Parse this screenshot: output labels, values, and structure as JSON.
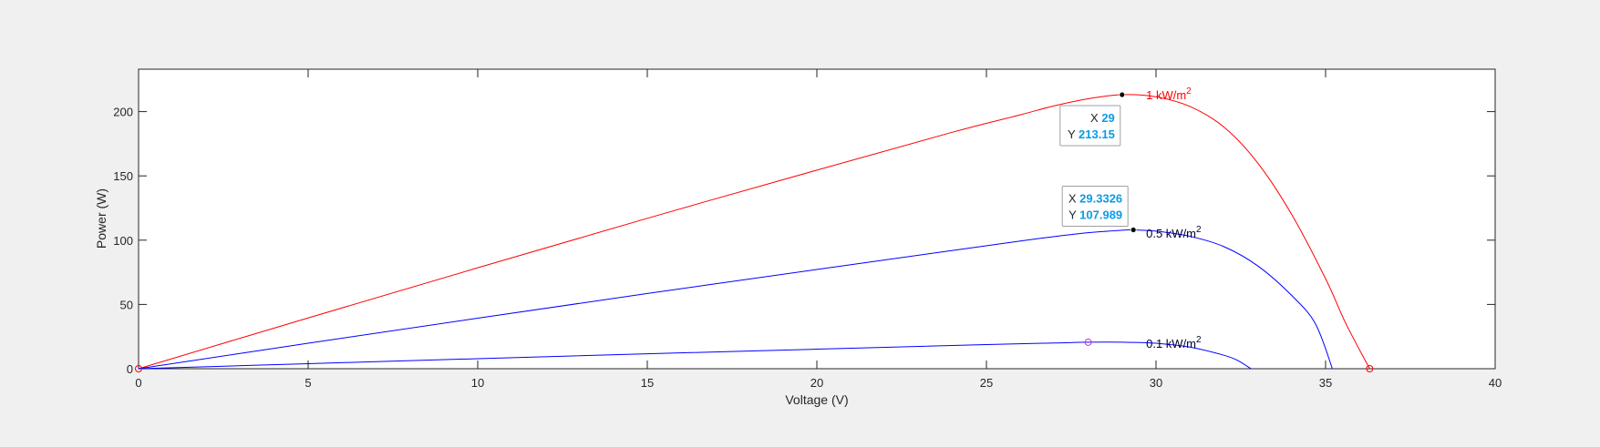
{
  "chart_data": {
    "type": "line",
    "title": "",
    "xlabel": "Voltage (V)",
    "ylabel": "Power (W)",
    "xlim": [
      0,
      40
    ],
    "ylim": [
      0,
      233
    ],
    "xticks": [
      0,
      5,
      10,
      15,
      20,
      25,
      30,
      35,
      40
    ],
    "yticks": [
      0,
      50,
      100,
      150,
      200
    ],
    "grid": false,
    "series": [
      {
        "label_prefix": "1 kW/m",
        "label_superscript": "2",
        "color": "#ff0000",
        "label_at": [
          29.6,
          213.15
        ],
        "points": [
          [
            0,
            0
          ],
          [
            5,
            39.5
          ],
          [
            10,
            78.5
          ],
          [
            15,
            117
          ],
          [
            20,
            154.5
          ],
          [
            24,
            184
          ],
          [
            26,
            197.5
          ],
          [
            27,
            204.5
          ],
          [
            28,
            210
          ],
          [
            29,
            213.15
          ],
          [
            30,
            211.5
          ],
          [
            31,
            204
          ],
          [
            32,
            188
          ],
          [
            33,
            160
          ],
          [
            34,
            120
          ],
          [
            35,
            70
          ],
          [
            35.6,
            35
          ],
          [
            36.3,
            0
          ]
        ]
      },
      {
        "label_prefix": "0.5 kW/m",
        "label_superscript": "2",
        "color": "#0000ff",
        "label_at": [
          29.6,
          105.5
        ],
        "points": [
          [
            0,
            0
          ],
          [
            5,
            19.8
          ],
          [
            10,
            39.3
          ],
          [
            15,
            58.5
          ],
          [
            20,
            77.2
          ],
          [
            24,
            92
          ],
          [
            26,
            99.3
          ],
          [
            27,
            102.8
          ],
          [
            28,
            105.8
          ],
          [
            29,
            107.7
          ],
          [
            29.3326,
            107.989
          ],
          [
            30,
            107
          ],
          [
            31,
            103
          ],
          [
            32,
            95
          ],
          [
            33,
            80
          ],
          [
            34,
            57
          ],
          [
            34.7,
            35
          ],
          [
            35.2,
            0
          ]
        ]
      },
      {
        "label_prefix": "0.1 kW/m",
        "label_superscript": "2",
        "color": "#0000ff",
        "label_at": [
          29.6,
          20
        ],
        "points": [
          [
            0,
            0
          ],
          [
            5,
            3.9
          ],
          [
            10,
            7.8
          ],
          [
            15,
            11.6
          ],
          [
            20,
            15.2
          ],
          [
            25,
            18.8
          ],
          [
            27,
            20
          ],
          [
            28,
            20.6
          ],
          [
            29,
            20.6
          ],
          [
            30,
            19.8
          ],
          [
            31,
            16.8
          ],
          [
            32,
            10.5
          ],
          [
            32.4,
            6.5
          ],
          [
            32.8,
            0
          ]
        ]
      }
    ],
    "markers": [
      {
        "x": 0,
        "y": 0,
        "style": "circle",
        "color": "#ff0000"
      },
      {
        "x": 36.3,
        "y": 0,
        "style": "circle",
        "color": "#ff0000"
      },
      {
        "x": 28,
        "y": 20.6,
        "style": "circle",
        "color": "#cc33cc"
      }
    ],
    "datatips": [
      {
        "x_label": "X",
        "x_value": "29",
        "y_label": "Y",
        "y_value": "213.15",
        "x": 29,
        "y": 213.15,
        "placement": "bottom-left"
      },
      {
        "x_label": "X",
        "x_value": "29.3326",
        "y_label": "Y",
        "y_value": "107.989",
        "x": 29.3326,
        "y": 107.989,
        "placement": "top-left"
      }
    ]
  }
}
